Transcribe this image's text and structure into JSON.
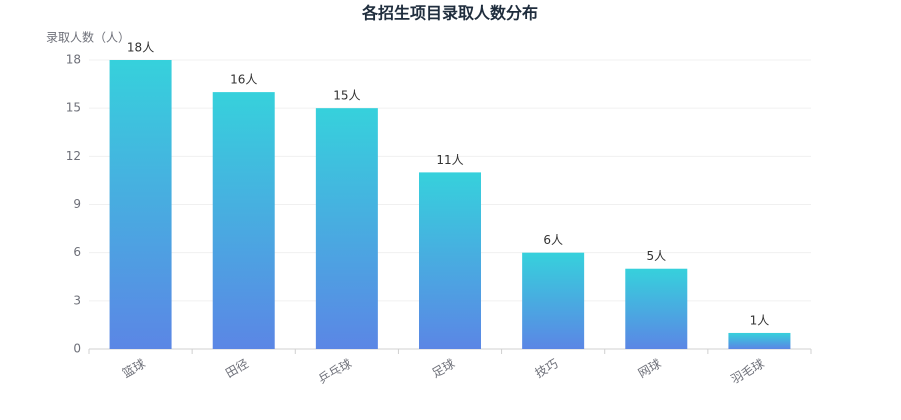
{
  "chart_data": {
    "type": "bar",
    "title": "各招生项目录取人数分布",
    "y_label": "录取人数（人）",
    "categories": [
      "篮球",
      "田径",
      "乒乓球",
      "足球",
      "技巧",
      "网球",
      "羽毛球"
    ],
    "values": [
      18,
      16,
      15,
      11,
      6,
      5,
      1
    ],
    "value_labels": [
      "18人",
      "16人",
      "15人",
      "11人",
      "6人",
      "5人",
      "1人"
    ],
    "gradient": [
      "#36d1dc",
      "#5b86e5"
    ],
    "ylim": [
      0,
      18
    ],
    "yticks": [
      0,
      3,
      6,
      9,
      12,
      15,
      18
    ],
    "grid": true
  }
}
